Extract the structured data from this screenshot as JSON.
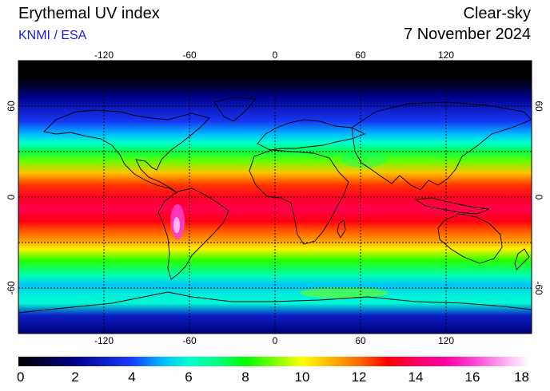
{
  "header": {
    "title": "Erythemal UV index",
    "source": "KNMI / ESA",
    "mode": "Clear-sky",
    "date": "7 November 2024"
  },
  "map": {
    "projection": "equirectangular",
    "lon_range": [
      -180,
      180
    ],
    "lat_range": [
      -90,
      90
    ],
    "lon_ticks": [
      -120,
      -60,
      0,
      60,
      120
    ],
    "lon_tick_labels": [
      "-120",
      "-60",
      "0",
      "60",
      "120"
    ],
    "lat_ticks": [
      60,
      0,
      -60
    ],
    "lat_tick_labels": [
      "60",
      "0",
      "-60"
    ],
    "gridlines": true
  },
  "colorbar": {
    "min": 0,
    "max": 18,
    "ticks": [
      0,
      2,
      4,
      6,
      8,
      10,
      12,
      14,
      16,
      18
    ],
    "tick_labels": [
      "0",
      "2",
      "4",
      "6",
      "8",
      "10",
      "12",
      "14",
      "16",
      "18"
    ],
    "stops": [
      {
        "v": 0,
        "color": "#000000"
      },
      {
        "v": 2,
        "color": "#00008a"
      },
      {
        "v": 4,
        "color": "#1a3cff"
      },
      {
        "v": 5,
        "color": "#00b4ff"
      },
      {
        "v": 6,
        "color": "#00ffd0"
      },
      {
        "v": 7,
        "color": "#00ff80"
      },
      {
        "v": 8,
        "color": "#00ff00"
      },
      {
        "v": 9,
        "color": "#7aff00"
      },
      {
        "v": 10,
        "color": "#ffff00"
      },
      {
        "v": 11,
        "color": "#ffb400"
      },
      {
        "v": 12,
        "color": "#ff6a00"
      },
      {
        "v": 13,
        "color": "#ff0000"
      },
      {
        "v": 14,
        "color": "#ff0060"
      },
      {
        "v": 15,
        "color": "#ff00a0"
      },
      {
        "v": 16,
        "color": "#ff40d0"
      },
      {
        "v": 17,
        "color": "#ffa0f0"
      },
      {
        "v": 18,
        "color": "#ffffff"
      }
    ]
  },
  "uv_profile": [
    {
      "lat": 90,
      "uv": 0
    },
    {
      "lat": 80,
      "uv": 0
    },
    {
      "lat": 74,
      "uv": 0.6
    },
    {
      "lat": 66,
      "uv": 2
    },
    {
      "lat": 58,
      "uv": 3
    },
    {
      "lat": 50,
      "uv": 3.8
    },
    {
      "lat": 42,
      "uv": 5
    },
    {
      "lat": 36,
      "uv": 6
    },
    {
      "lat": 30,
      "uv": 7.4
    },
    {
      "lat": 24,
      "uv": 8.8
    },
    {
      "lat": 16,
      "uv": 10.8
    },
    {
      "lat": 8,
      "uv": 12.5
    },
    {
      "lat": 0,
      "uv": 13.4
    },
    {
      "lat": -8,
      "uv": 13.8
    },
    {
      "lat": -16,
      "uv": 13.2
    },
    {
      "lat": -22,
      "uv": 12.2
    },
    {
      "lat": -28,
      "uv": 11.4
    },
    {
      "lat": -34,
      "uv": 10.2
    },
    {
      "lat": -42,
      "uv": 8.3
    },
    {
      "lat": -52,
      "uv": 6.3
    },
    {
      "lat": -58,
      "uv": 5.2
    },
    {
      "lat": -64,
      "uv": 5.8
    },
    {
      "lat": -70,
      "uv": 5.9
    },
    {
      "lat": -78,
      "uv": 3
    },
    {
      "lat": -90,
      "uv": 1.8
    }
  ]
}
